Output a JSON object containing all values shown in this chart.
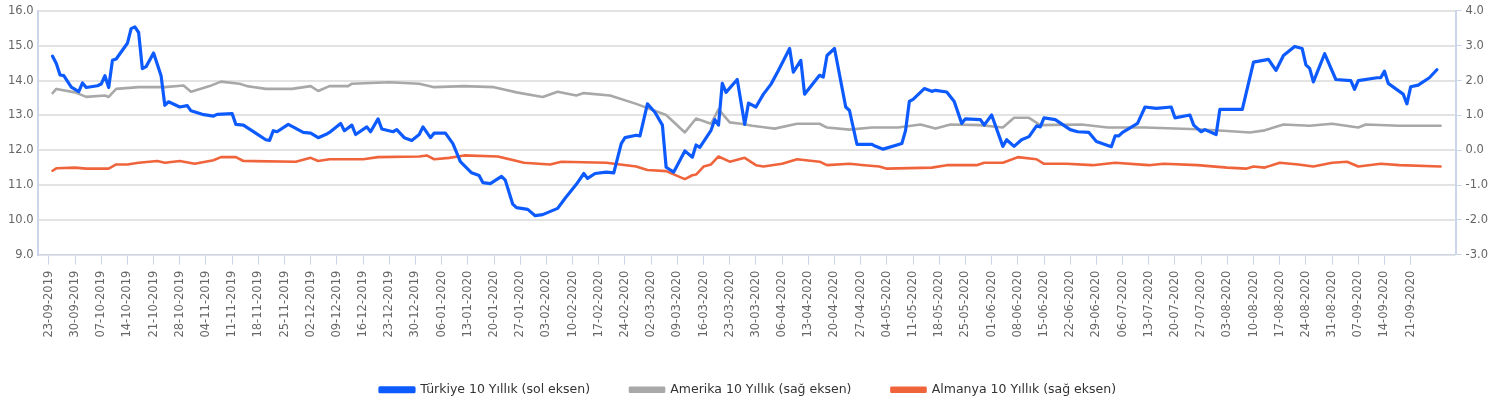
{
  "chart_data": {
    "type": "line",
    "xlim": [
      "2019-09-20",
      "2020-10-03"
    ],
    "xticks": [
      {
        "value": "2019-09-23",
        "label": "23-09-2019"
      },
      {
        "value": "2019-09-30",
        "label": "30-09-2019"
      },
      {
        "value": "2019-10-07",
        "label": "07-10-2019"
      },
      {
        "value": "2019-10-14",
        "label": "14-10-2019"
      },
      {
        "value": "2019-10-21",
        "label": "21-10-2019"
      },
      {
        "value": "2019-10-28",
        "label": "28-10-2019"
      },
      {
        "value": "2019-11-04",
        "label": "04-11-2019"
      },
      {
        "value": "2019-11-11",
        "label": "11-11-2019"
      },
      {
        "value": "2019-11-18",
        "label": "18-11-2019"
      },
      {
        "value": "2019-11-25",
        "label": "25-11-2019"
      },
      {
        "value": "2019-12-02",
        "label": "02-12-2019"
      },
      {
        "value": "2019-12-09",
        "label": "09-12-2019"
      },
      {
        "value": "2019-12-16",
        "label": "16-12-2019"
      },
      {
        "value": "2019-12-23",
        "label": "23-12-2019"
      },
      {
        "value": "2019-12-30",
        "label": "30-12-2019"
      },
      {
        "value": "2020-01-06",
        "label": "06-01-2020"
      },
      {
        "value": "2020-01-13",
        "label": "13-01-2020"
      },
      {
        "value": "2020-01-20",
        "label": "20-01-2020"
      },
      {
        "value": "2020-01-27",
        "label": "27-01-2020"
      },
      {
        "value": "2020-02-03",
        "label": "03-02-2020"
      },
      {
        "value": "2020-02-10",
        "label": "10-02-2020"
      },
      {
        "value": "2020-02-17",
        "label": "17-02-2020"
      },
      {
        "value": "2020-02-24",
        "label": "24-02-2020"
      },
      {
        "value": "2020-03-02",
        "label": "02-03-2020"
      },
      {
        "value": "2020-03-09",
        "label": "09-03-2020"
      },
      {
        "value": "2020-03-16",
        "label": "16-03-2020"
      },
      {
        "value": "2020-03-23",
        "label": "23-03-2020"
      },
      {
        "value": "2020-03-30",
        "label": "30-03-2020"
      },
      {
        "value": "2020-04-06",
        "label": "06-04-2020"
      },
      {
        "value": "2020-04-13",
        "label": "13-04-2020"
      },
      {
        "value": "2020-04-20",
        "label": "20-04-2020"
      },
      {
        "value": "2020-04-27",
        "label": "27-04-2020"
      },
      {
        "value": "2020-05-04",
        "label": "04-05-2020"
      },
      {
        "value": "2020-05-11",
        "label": "11-05-2020"
      },
      {
        "value": "2020-05-18",
        "label": "18-05-2020"
      },
      {
        "value": "2020-05-25",
        "label": "25-05-2020"
      },
      {
        "value": "2020-06-01",
        "label": "01-06-2020"
      },
      {
        "value": "2020-06-08",
        "label": "08-06-2020"
      },
      {
        "value": "2020-06-15",
        "label": "15-06-2020"
      },
      {
        "value": "2020-06-22",
        "label": "22-06-2020"
      },
      {
        "value": "2020-06-29",
        "label": "29-06-2020"
      },
      {
        "value": "2020-07-06",
        "label": "06-07-2020"
      },
      {
        "value": "2020-07-13",
        "label": "13-07-2020"
      },
      {
        "value": "2020-07-20",
        "label": "20-07-2020"
      },
      {
        "value": "2020-07-27",
        "label": "27-07-2020"
      },
      {
        "value": "2020-08-03",
        "label": "03-08-2020"
      },
      {
        "value": "2020-08-10",
        "label": "10-08-2020"
      },
      {
        "value": "2020-08-17",
        "label": "17-08-2020"
      },
      {
        "value": "2020-08-24",
        "label": "24-08-2020"
      },
      {
        "value": "2020-08-31",
        "label": "31-08-2020"
      },
      {
        "value": "2020-09-07",
        "label": "07-09-2020"
      },
      {
        "value": "2020-09-14",
        "label": "14-09-2020"
      },
      {
        "value": "2020-09-21",
        "label": "21-09-2020"
      }
    ],
    "ylim": [
      9,
      16
    ],
    "yticks": [
      {
        "value": 9,
        "label": "9.0"
      },
      {
        "value": 10,
        "label": "10.0"
      },
      {
        "value": 11,
        "label": "11.0"
      },
      {
        "value": 12,
        "label": "12.0"
      },
      {
        "value": 13,
        "label": "13.0"
      },
      {
        "value": 14,
        "label": "14.0"
      },
      {
        "value": 15,
        "label": "15.0"
      },
      {
        "value": 16,
        "label": "16.0"
      }
    ],
    "y2lim": [
      -3,
      4
    ],
    "y2ticks": [
      {
        "value": -3,
        "label": "-3.0"
      },
      {
        "value": -2,
        "label": "-2.0"
      },
      {
        "value": -1,
        "label": "-1.0"
      },
      {
        "value": 0,
        "label": "0.0"
      },
      {
        "value": 1,
        "label": "1.0"
      },
      {
        "value": 2,
        "label": "2.0"
      },
      {
        "value": 3,
        "label": "3.0"
      },
      {
        "value": 4,
        "label": "4.0"
      }
    ],
    "grid": "y",
    "legend": "bottom",
    "series": [
      {
        "name": "Türkiye 10 Yıllık (sol eksen)",
        "color": "#0d5bff",
        "x": [
          "2019-09-24",
          "2019-09-25",
          "2019-09-26",
          "2019-09-27",
          "2019-09-29",
          "2019-10-01",
          "2019-10-02",
          "2019-10-03",
          "2019-10-06",
          "2019-10-07",
          "2019-10-08",
          "2019-10-09",
          "2019-10-10",
          "2019-10-11",
          "2019-10-14",
          "2019-10-15",
          "2019-10-16",
          "2019-10-17",
          "2019-10-18",
          "2019-10-19",
          "2019-10-21",
          "2019-10-23",
          "2019-10-24",
          "2019-10-25",
          "2019-10-28",
          "2019-10-30",
          "2019-10-31",
          "2019-11-03",
          "2019-11-06",
          "2019-11-07",
          "2019-11-11",
          "2019-11-12",
          "2019-11-14",
          "2019-11-17",
          "2019-11-20",
          "2019-11-21",
          "2019-11-22",
          "2019-11-23",
          "2019-11-26",
          "2019-11-30",
          "2019-12-02",
          "2019-12-04",
          "2019-12-06",
          "2019-12-07",
          "2019-12-10",
          "2019-12-11",
          "2019-12-13",
          "2019-12-14",
          "2019-12-17",
          "2019-12-18",
          "2019-12-20",
          "2019-12-21",
          "2019-12-24",
          "2019-12-25",
          "2019-12-27",
          "2019-12-29",
          "2019-12-31",
          "2020-01-01",
          "2020-01-03",
          "2020-01-04",
          "2020-01-07",
          "2020-01-09",
          "2020-01-11",
          "2020-01-14",
          "2020-01-16",
          "2020-01-17",
          "2020-01-19",
          "2020-01-22",
          "2020-01-23",
          "2020-01-25",
          "2020-01-26",
          "2020-01-29",
          "2020-01-31",
          "2020-02-02",
          "2020-02-06",
          "2020-02-08",
          "2020-02-11",
          "2020-02-13",
          "2020-02-14",
          "2020-02-16",
          "2020-02-19",
          "2020-02-21",
          "2020-02-23",
          "2020-02-24",
          "2020-02-27",
          "2020-02-28",
          "2020-03-01",
          "2020-03-03",
          "2020-03-05",
          "2020-03-06",
          "2020-03-08",
          "2020-03-11",
          "2020-03-13",
          "2020-03-14",
          "2020-03-15",
          "2020-03-18",
          "2020-03-19",
          "2020-03-20",
          "2020-03-21",
          "2020-03-22",
          "2020-03-25",
          "2020-03-27",
          "2020-03-28",
          "2020-03-30",
          "2020-04-01",
          "2020-04-03",
          "2020-04-05",
          "2020-04-08",
          "2020-04-09",
          "2020-04-11",
          "2020-04-12",
          "2020-04-16",
          "2020-04-17",
          "2020-04-18",
          "2020-04-20",
          "2020-04-23",
          "2020-04-24",
          "2020-04-26",
          "2020-04-30",
          "2020-05-01",
          "2020-05-03",
          "2020-05-08",
          "2020-05-09",
          "2020-05-10",
          "2020-05-11",
          "2020-05-14",
          "2020-05-16",
          "2020-05-17",
          "2020-05-20",
          "2020-05-22",
          "2020-05-24",
          "2020-05-25",
          "2020-05-29",
          "2020-05-30",
          "2020-06-01",
          "2020-06-04",
          "2020-06-05",
          "2020-06-07",
          "2020-06-09",
          "2020-06-11",
          "2020-06-13",
          "2020-06-14",
          "2020-06-15",
          "2020-06-18",
          "2020-06-22",
          "2020-06-24",
          "2020-06-27",
          "2020-06-29",
          "2020-07-03",
          "2020-07-04",
          "2020-07-05",
          "2020-07-06",
          "2020-07-10",
          "2020-07-12",
          "2020-07-15",
          "2020-07-19",
          "2020-07-20",
          "2020-07-24",
          "2020-07-25",
          "2020-07-27",
          "2020-07-28",
          "2020-07-31",
          "2020-08-01",
          "2020-08-03",
          "2020-08-07",
          "2020-08-10",
          "2020-08-14",
          "2020-08-16",
          "2020-08-18",
          "2020-08-21",
          "2020-08-23",
          "2020-08-24",
          "2020-08-25",
          "2020-08-26",
          "2020-08-29",
          "2020-09-01",
          "2020-09-05",
          "2020-09-06",
          "2020-09-07",
          "2020-09-12",
          "2020-09-13",
          "2020-09-14",
          "2020-09-15",
          "2020-09-19",
          "2020-09-20",
          "2020-09-21",
          "2020-09-23",
          "2020-09-26",
          "2020-09-28"
        ],
        "values": [
          14.7,
          14.49,
          14.16,
          14.14,
          13.81,
          13.68,
          13.93,
          13.8,
          13.85,
          13.9,
          14.14,
          13.8,
          14.58,
          14.62,
          15.07,
          15.49,
          15.54,
          15.38,
          14.34,
          14.4,
          14.79,
          14.14,
          13.29,
          13.39,
          13.24,
          13.28,
          13.13,
          13.03,
          12.98,
          13.03,
          13.05,
          12.74,
          12.72,
          12.51,
          12.3,
          12.28,
          12.56,
          12.53,
          12.74,
          12.51,
          12.49,
          12.36,
          12.45,
          12.51,
          12.77,
          12.56,
          12.72,
          12.45,
          12.67,
          12.53,
          12.9,
          12.61,
          12.53,
          12.59,
          12.36,
          12.28,
          12.45,
          12.67,
          12.36,
          12.49,
          12.49,
          12.19,
          11.67,
          11.35,
          11.27,
          11.07,
          11.04,
          11.25,
          11.14,
          10.45,
          10.35,
          10.3,
          10.12,
          10.15,
          10.33,
          10.62,
          11.02,
          11.33,
          11.19,
          11.33,
          11.37,
          11.35,
          12.19,
          12.36,
          12.43,
          12.41,
          13.33,
          13.09,
          12.72,
          11.51,
          11.37,
          11.98,
          11.8,
          12.15,
          12.08,
          12.57,
          12.88,
          12.72,
          13.92,
          13.66,
          14.03,
          12.74,
          13.35,
          13.24,
          13.61,
          13.89,
          14.29,
          14.92,
          14.24,
          14.58,
          13.61,
          14.15,
          14.1,
          14.72,
          14.92,
          13.24,
          13.14,
          12.17,
          12.17,
          12.11,
          12.03,
          12.19,
          12.57,
          13.4,
          13.46,
          13.77,
          13.69,
          13.72,
          13.67,
          13.4,
          12.77,
          12.9,
          12.88,
          12.72,
          13.01,
          12.11,
          12.3,
          12.11,
          12.3,
          12.39,
          12.7,
          12.67,
          12.93,
          12.88,
          12.59,
          12.53,
          12.51,
          12.25,
          12.1,
          12.41,
          12.41,
          12.51,
          12.77,
          13.24,
          13.2,
          13.24,
          12.93,
          13.01,
          12.72,
          12.53,
          12.59,
          12.45,
          13.17,
          13.17,
          13.17,
          14.53,
          14.61,
          14.29,
          14.72,
          14.98,
          14.92,
          14.45,
          14.35,
          13.96,
          14.77,
          14.03,
          14.0,
          13.75,
          14.0,
          14.08,
          14.08,
          14.27,
          13.92,
          13.61,
          13.33,
          13.82,
          13.87,
          14.08,
          14.31
        ]
      },
      {
        "name": "Amerika 10 Yıllık (sağ eksen)",
        "color": "#a8a8a8",
        "axis": "y2",
        "x": [
          "2019-09-24",
          "2019-09-25",
          "2019-09-30",
          "2019-10-03",
          "2019-10-08",
          "2019-10-09",
          "2019-10-11",
          "2019-10-17",
          "2019-10-24",
          "2019-10-29",
          "2019-10-31",
          "2019-11-05",
          "2019-11-08",
          "2019-11-13",
          "2019-11-15",
          "2019-11-20",
          "2019-11-27",
          "2019-12-02",
          "2019-12-04",
          "2019-12-07",
          "2019-12-12",
          "2019-12-13",
          "2019-12-23",
          "2019-12-31",
          "2020-01-04",
          "2020-01-12",
          "2020-01-20",
          "2020-01-26",
          "2020-02-02",
          "2020-02-06",
          "2020-02-11",
          "2020-02-13",
          "2020-02-20",
          "2020-02-27",
          "2020-03-06",
          "2020-03-11",
          "2020-03-14",
          "2020-03-18",
          "2020-03-20",
          "2020-03-23",
          "2020-03-26",
          "2020-03-29",
          "2020-04-04",
          "2020-04-10",
          "2020-04-16",
          "2020-04-18",
          "2020-04-24",
          "2020-04-30",
          "2020-05-07",
          "2020-05-13",
          "2020-05-17",
          "2020-05-21",
          "2020-05-29",
          "2020-06-04",
          "2020-06-07",
          "2020-06-11",
          "2020-06-14",
          "2020-06-25",
          "2020-07-02",
          "2020-07-12",
          "2020-07-26",
          "2020-08-03",
          "2020-08-09",
          "2020-08-13",
          "2020-08-18",
          "2020-08-25",
          "2020-08-31",
          "2020-09-07",
          "2020-09-09",
          "2020-09-18",
          "2020-09-29"
        ],
        "values": [
          1.64,
          1.76,
          1.66,
          1.53,
          1.57,
          1.53,
          1.76,
          1.81,
          1.81,
          1.86,
          1.68,
          1.84,
          1.97,
          1.91,
          1.84,
          1.76,
          1.76,
          1.84,
          1.7,
          1.84,
          1.84,
          1.91,
          1.95,
          1.91,
          1.81,
          1.84,
          1.81,
          1.66,
          1.53,
          1.68,
          1.57,
          1.64,
          1.57,
          1.33,
          1.01,
          0.51,
          0.91,
          0.76,
          1.17,
          0.8,
          0.76,
          0.7,
          0.62,
          0.76,
          0.76,
          0.65,
          0.59,
          0.65,
          0.65,
          0.74,
          0.62,
          0.74,
          0.72,
          0.65,
          0.93,
          0.93,
          0.72,
          0.74,
          0.65,
          0.65,
          0.6,
          0.55,
          0.51,
          0.57,
          0.74,
          0.7,
          0.76,
          0.65,
          0.74,
          0.7,
          0.7
        ]
      },
      {
        "name": "Almanya 10 Yıllık (sağ eksen)",
        "color": "#f0643c",
        "axis": "y2",
        "x": [
          "2019-09-24",
          "2019-09-25",
          "2019-09-30",
          "2019-10-03",
          "2019-10-09",
          "2019-10-11",
          "2019-10-14",
          "2019-10-17",
          "2019-10-22",
          "2019-10-24",
          "2019-10-28",
          "2019-11-01",
          "2019-11-06",
          "2019-11-08",
          "2019-11-12",
          "2019-11-14",
          "2019-11-28",
          "2019-12-02",
          "2019-12-04",
          "2019-12-07",
          "2019-12-16",
          "2019-12-20",
          "2019-12-31",
          "2020-01-02",
          "2020-01-04",
          "2020-01-08",
          "2020-01-12",
          "2020-01-21",
          "2020-01-28",
          "2020-02-04",
          "2020-02-07",
          "2020-02-19",
          "2020-02-27",
          "2020-03-01",
          "2020-03-06",
          "2020-03-11",
          "2020-03-13",
          "2020-03-14",
          "2020-03-16",
          "2020-03-18",
          "2020-03-20",
          "2020-03-23",
          "2020-03-27",
          "2020-03-30",
          "2020-04-01",
          "2020-04-06",
          "2020-04-10",
          "2020-04-16",
          "2020-04-18",
          "2020-04-24",
          "2020-04-28",
          "2020-05-02",
          "2020-05-04",
          "2020-05-16",
          "2020-05-20",
          "2020-05-28",
          "2020-05-30",
          "2020-06-04",
          "2020-06-08",
          "2020-06-13",
          "2020-06-15",
          "2020-06-21",
          "2020-06-28",
          "2020-07-04",
          "2020-07-13",
          "2020-07-17",
          "2020-07-26",
          "2020-08-03",
          "2020-08-08",
          "2020-08-10",
          "2020-08-13",
          "2020-08-17",
          "2020-08-22",
          "2020-08-26",
          "2020-08-31",
          "2020-09-04",
          "2020-09-07",
          "2020-09-13",
          "2020-09-18",
          "2020-09-29"
        ],
        "values": [
          -0.59,
          -0.52,
          -0.5,
          -0.53,
          -0.53,
          -0.41,
          -0.41,
          -0.36,
          -0.31,
          -0.36,
          -0.31,
          -0.39,
          -0.29,
          -0.2,
          -0.2,
          -0.31,
          -0.33,
          -0.22,
          -0.31,
          -0.26,
          -0.26,
          -0.2,
          -0.18,
          -0.15,
          -0.26,
          -0.22,
          -0.15,
          -0.18,
          -0.36,
          -0.41,
          -0.33,
          -0.36,
          -0.47,
          -0.57,
          -0.6,
          -0.83,
          -0.72,
          -0.7,
          -0.47,
          -0.41,
          -0.18,
          -0.33,
          -0.22,
          -0.43,
          -0.47,
          -0.39,
          -0.26,
          -0.33,
          -0.43,
          -0.39,
          -0.43,
          -0.47,
          -0.53,
          -0.5,
          -0.43,
          -0.43,
          -0.36,
          -0.36,
          -0.2,
          -0.26,
          -0.39,
          -0.39,
          -0.43,
          -0.36,
          -0.43,
          -0.39,
          -0.43,
          -0.5,
          -0.53,
          -0.47,
          -0.5,
          -0.36,
          -0.41,
          -0.47,
          -0.36,
          -0.33,
          -0.47,
          -0.39,
          -0.43,
          -0.47
        ]
      }
    ]
  }
}
